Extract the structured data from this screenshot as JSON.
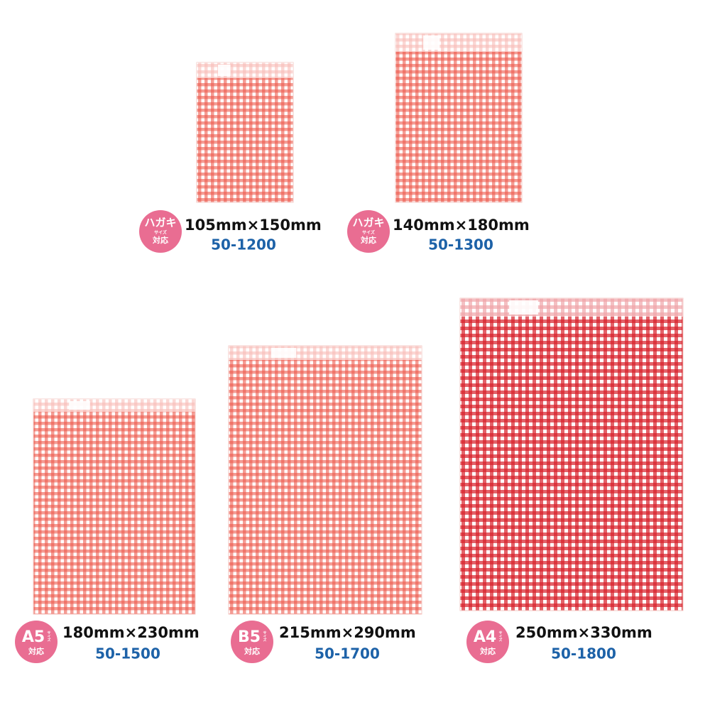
{
  "items": [
    {
      "badge": {
        "main": "ハガキ",
        "sub": "サイズ",
        "bottom": "対応"
      },
      "size": "105mm×150mm",
      "code": "50-1200"
    },
    {
      "badge": {
        "main": "ハガキ",
        "sub": "サイズ",
        "bottom": "対応"
      },
      "size": "140mm×180mm",
      "code": "50-1300"
    },
    {
      "badge": {
        "main": "A5",
        "sub": "サイズ",
        "bottom": "対応"
      },
      "size": "180mm×230mm",
      "code": "50-1500"
    },
    {
      "badge": {
        "main": "B5",
        "sub": "サイズ",
        "bottom": "対応"
      },
      "size": "215mm×290mm",
      "code": "50-1700"
    },
    {
      "badge": {
        "main": "A4",
        "sub": "サイズ",
        "bottom": "対応"
      },
      "size": "250mm×330mm",
      "code": "50-1800"
    }
  ]
}
